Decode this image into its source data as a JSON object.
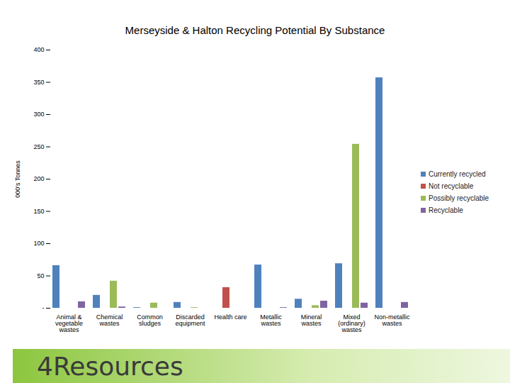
{
  "chart_data": {
    "type": "bar",
    "title": "Merseyside & Halton Recycling Potential By Substance",
    "y_label": "000's Tonnes",
    "annotations": [
      "4Resources"
    ],
    "categories": [
      "Animal & vegetable wastes",
      "Chemical wastes",
      "Common sludges",
      "Discarded equipment",
      "Health care",
      "Metallic wastes",
      "Mineral wastes",
      "Mixed (ordinary) wastes",
      "Non-metallic wastes"
    ],
    "series": [
      {
        "name": "Currently recycled",
        "color": "#4f81bd",
        "values": [
          66,
          20,
          1,
          9,
          0,
          67,
          14,
          69,
          357
        ]
      },
      {
        "name": "Not recyclable",
        "color": "#c0504d",
        "values": [
          0,
          0,
          0,
          0,
          32,
          0,
          0,
          0,
          0
        ]
      },
      {
        "name": "Possibly recyclable",
        "color": "#9bbb59",
        "values": [
          0,
          42,
          8,
          1,
          0,
          0,
          4,
          254,
          0
        ]
      },
      {
        "name": "Recyclable",
        "color": "#8064a2",
        "values": [
          10,
          2,
          0,
          0,
          0,
          1,
          11,
          8,
          9
        ]
      }
    ],
    "ylim": [
      0,
      400
    ],
    "yticks": [
      {
        "value": 0,
        "label": "-"
      },
      50,
      100,
      150,
      200,
      250,
      300,
      350,
      400
    ],
    "grid": false,
    "legend": "right"
  }
}
